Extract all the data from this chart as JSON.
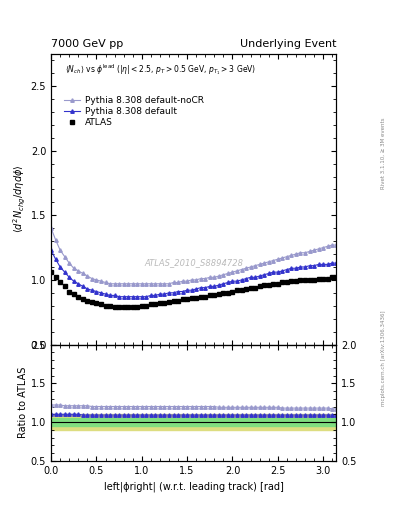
{
  "title_left": "7000 GeV pp",
  "title_right": "Underlying Event",
  "watermark": "ATLAS_2010_S8894728",
  "rivet_label": "Rivet 3.1.10, ≥ 3M events",
  "arxiv_label": "mcplots.cern.ch [arXiv:1306.3436]",
  "xmin": 0,
  "xmax": 3.14159,
  "ylim_main": [
    0.5,
    2.75
  ],
  "ylim_ratio": [
    0.5,
    2.0
  ],
  "yticks_main": [
    0.5,
    1.0,
    1.5,
    2.0,
    2.5
  ],
  "yticks_ratio": [
    0.5,
    1.0,
    1.5,
    2.0
  ],
  "atlas_color": "#000000",
  "pythia_default_color": "#3333cc",
  "pythia_nocr_color": "#9999cc",
  "green_band_color": "#80dd80",
  "yellow_band_color": "#dddd80",
  "atlas_x": [
    0.0,
    0.05,
    0.1,
    0.15,
    0.2,
    0.25,
    0.3,
    0.35,
    0.4,
    0.45,
    0.5,
    0.55,
    0.6,
    0.65,
    0.7,
    0.75,
    0.8,
    0.85,
    0.9,
    0.95,
    1.0,
    1.05,
    1.1,
    1.15,
    1.2,
    1.25,
    1.3,
    1.35,
    1.4,
    1.45,
    1.5,
    1.55,
    1.6,
    1.65,
    1.7,
    1.75,
    1.8,
    1.85,
    1.9,
    1.95,
    2.0,
    2.05,
    2.1,
    2.15,
    2.2,
    2.25,
    2.3,
    2.35,
    2.4,
    2.45,
    2.5,
    2.55,
    2.6,
    2.65,
    2.7,
    2.75,
    2.8,
    2.85,
    2.9,
    2.95,
    3.0,
    3.05,
    3.1,
    3.14159
  ],
  "atlas_y": [
    1.06,
    1.02,
    0.98,
    0.95,
    0.91,
    0.89,
    0.87,
    0.85,
    0.84,
    0.83,
    0.82,
    0.81,
    0.8,
    0.8,
    0.79,
    0.79,
    0.79,
    0.79,
    0.79,
    0.79,
    0.8,
    0.8,
    0.81,
    0.81,
    0.82,
    0.82,
    0.83,
    0.84,
    0.84,
    0.85,
    0.85,
    0.86,
    0.86,
    0.87,
    0.87,
    0.88,
    0.88,
    0.89,
    0.9,
    0.9,
    0.91,
    0.92,
    0.92,
    0.93,
    0.94,
    0.94,
    0.95,
    0.96,
    0.96,
    0.97,
    0.97,
    0.98,
    0.98,
    0.99,
    0.99,
    1.0,
    1.0,
    1.0,
    1.0,
    1.01,
    1.01,
    1.01,
    1.02,
    1.02
  ],
  "pythia_default_x": [
    0.0,
    0.05,
    0.1,
    0.15,
    0.2,
    0.25,
    0.3,
    0.35,
    0.4,
    0.45,
    0.5,
    0.55,
    0.6,
    0.65,
    0.7,
    0.75,
    0.8,
    0.85,
    0.9,
    0.95,
    1.0,
    1.05,
    1.1,
    1.15,
    1.2,
    1.25,
    1.3,
    1.35,
    1.4,
    1.45,
    1.5,
    1.55,
    1.6,
    1.65,
    1.7,
    1.75,
    1.8,
    1.85,
    1.9,
    1.95,
    2.0,
    2.05,
    2.1,
    2.15,
    2.2,
    2.25,
    2.3,
    2.35,
    2.4,
    2.45,
    2.5,
    2.55,
    2.6,
    2.65,
    2.7,
    2.75,
    2.8,
    2.85,
    2.9,
    2.95,
    3.0,
    3.05,
    3.1,
    3.14159
  ],
  "pythia_default_y": [
    1.23,
    1.16,
    1.1,
    1.06,
    1.02,
    0.99,
    0.97,
    0.95,
    0.93,
    0.92,
    0.91,
    0.9,
    0.89,
    0.88,
    0.88,
    0.87,
    0.87,
    0.87,
    0.87,
    0.87,
    0.87,
    0.87,
    0.88,
    0.88,
    0.89,
    0.89,
    0.9,
    0.9,
    0.91,
    0.91,
    0.92,
    0.92,
    0.93,
    0.94,
    0.94,
    0.95,
    0.95,
    0.96,
    0.97,
    0.98,
    0.99,
    0.99,
    1.0,
    1.01,
    1.02,
    1.02,
    1.03,
    1.04,
    1.05,
    1.06,
    1.06,
    1.07,
    1.08,
    1.09,
    1.09,
    1.1,
    1.1,
    1.11,
    1.11,
    1.12,
    1.12,
    1.12,
    1.13,
    1.13
  ],
  "pythia_nocr_x": [
    0.0,
    0.05,
    0.1,
    0.15,
    0.2,
    0.25,
    0.3,
    0.35,
    0.4,
    0.45,
    0.5,
    0.55,
    0.6,
    0.65,
    0.7,
    0.75,
    0.8,
    0.85,
    0.9,
    0.95,
    1.0,
    1.05,
    1.1,
    1.15,
    1.2,
    1.25,
    1.3,
    1.35,
    1.4,
    1.45,
    1.5,
    1.55,
    1.6,
    1.65,
    1.7,
    1.75,
    1.8,
    1.85,
    1.9,
    1.95,
    2.0,
    2.05,
    2.1,
    2.15,
    2.2,
    2.25,
    2.3,
    2.35,
    2.4,
    2.45,
    2.5,
    2.55,
    2.6,
    2.65,
    2.7,
    2.75,
    2.8,
    2.85,
    2.9,
    2.95,
    3.0,
    3.05,
    3.1,
    3.14159
  ],
  "pythia_nocr_y": [
    1.4,
    1.31,
    1.23,
    1.18,
    1.13,
    1.09,
    1.07,
    1.05,
    1.03,
    1.01,
    1.0,
    0.99,
    0.98,
    0.97,
    0.97,
    0.97,
    0.97,
    0.97,
    0.97,
    0.97,
    0.97,
    0.97,
    0.97,
    0.97,
    0.97,
    0.97,
    0.97,
    0.98,
    0.98,
    0.99,
    0.99,
    1.0,
    1.0,
    1.01,
    1.01,
    1.02,
    1.02,
    1.03,
    1.04,
    1.05,
    1.06,
    1.07,
    1.08,
    1.09,
    1.1,
    1.11,
    1.12,
    1.13,
    1.14,
    1.15,
    1.16,
    1.17,
    1.18,
    1.19,
    1.2,
    1.21,
    1.21,
    1.22,
    1.23,
    1.24,
    1.25,
    1.26,
    1.27,
    1.27
  ],
  "ratio_default_y": [
    1.1,
    1.1,
    1.1,
    1.1,
    1.1,
    1.1,
    1.1,
    1.09,
    1.09,
    1.09,
    1.09,
    1.09,
    1.09,
    1.09,
    1.09,
    1.09,
    1.09,
    1.09,
    1.09,
    1.09,
    1.09,
    1.09,
    1.09,
    1.09,
    1.09,
    1.09,
    1.09,
    1.09,
    1.09,
    1.09,
    1.09,
    1.09,
    1.09,
    1.09,
    1.09,
    1.09,
    1.09,
    1.09,
    1.09,
    1.09,
    1.09,
    1.09,
    1.09,
    1.09,
    1.09,
    1.09,
    1.09,
    1.09,
    1.09,
    1.09,
    1.09,
    1.09,
    1.09,
    1.09,
    1.09,
    1.09,
    1.09,
    1.09,
    1.09,
    1.09,
    1.09,
    1.09,
    1.09,
    1.09
  ],
  "ratio_nocr_y": [
    1.22,
    1.22,
    1.22,
    1.21,
    1.21,
    1.21,
    1.21,
    1.21,
    1.21,
    1.2,
    1.2,
    1.2,
    1.2,
    1.2,
    1.2,
    1.2,
    1.2,
    1.2,
    1.2,
    1.2,
    1.2,
    1.2,
    1.2,
    1.2,
    1.2,
    1.2,
    1.2,
    1.2,
    1.2,
    1.2,
    1.2,
    1.2,
    1.2,
    1.2,
    1.2,
    1.2,
    1.2,
    1.19,
    1.19,
    1.19,
    1.19,
    1.19,
    1.19,
    1.19,
    1.19,
    1.19,
    1.19,
    1.19,
    1.19,
    1.19,
    1.19,
    1.18,
    1.18,
    1.18,
    1.18,
    1.18,
    1.18,
    1.18,
    1.18,
    1.18,
    1.18,
    1.18,
    1.17,
    1.17
  ]
}
